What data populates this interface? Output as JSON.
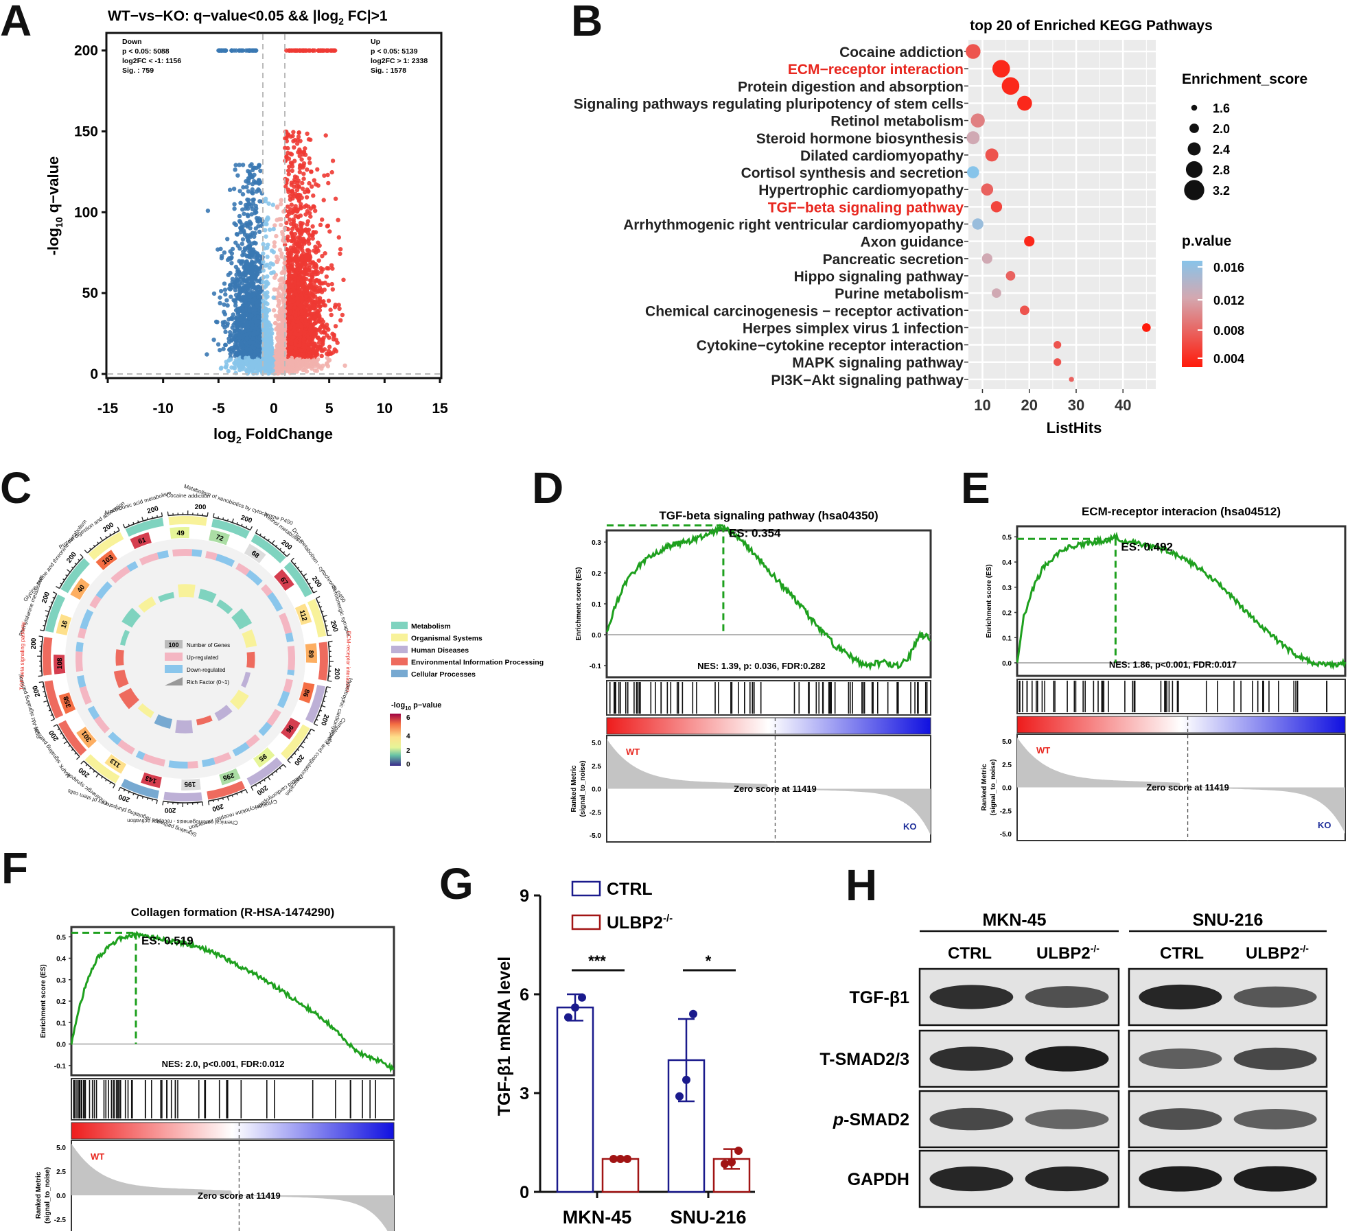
{
  "panels": {
    "A": {
      "label": "A",
      "title": "WT−vs−KO: q−value<0.05 && |log",
      "title_sub": "2",
      "title_end": " FC|>1",
      "xlabel": "log",
      "xlabel_sub": "2",
      "xlabel_end": " FoldChange",
      "ylabel": "-log",
      "ylabel_sub": "10",
      "ylabel_end": " q−value",
      "xticks": [
        "-15",
        "-10",
        "-5",
        "0",
        "5",
        "10",
        "15"
      ],
      "yticks": [
        "0",
        "50",
        "100",
        "150",
        "200"
      ],
      "down": {
        "l1": "Down",
        "l2": "p < 0.05: 5088",
        "l3": "log2FC < -1: 1156",
        "l4": "Sig. : 759"
      },
      "up": {
        "l1": "Up",
        "l2": "p < 0.05: 5139",
        "l3": "log2FC > 1: 2338",
        "l4": "Sig. : 1578"
      },
      "colors": {
        "down": "#3a78b3",
        "up": "#ee3a33",
        "ns_down": "#87c4ea",
        "ns_up": "#f2b1ad",
        "ns": "#cfcfcf"
      }
    },
    "B": {
      "label": "B",
      "title": "top 20 of Enriched KEGG Pathways",
      "xlabel": "ListHits",
      "xticks": [
        "10",
        "20",
        "30",
        "40"
      ],
      "legend_size_title": "Enrichment_score",
      "legend_size_items": [
        "1.6",
        "2.0",
        "2.4",
        "2.8",
        "3.2"
      ],
      "legend_color_title": "p.value",
      "legend_color_items": [
        "0.016",
        "0.012",
        "0.008",
        "0.004"
      ]
    },
    "C": {
      "label": "C",
      "legend_items": [
        "Metabolism",
        "Organismal Systems",
        "Human Diseases",
        "Environmental Information Processing",
        "Cellular Processes"
      ],
      "legend_colors": [
        "#7fd3bf",
        "#f8f29a",
        "#bdb0d6",
        "#ee6b5e",
        "#77a9d1"
      ],
      "inner_legend": [
        "Number of Genes",
        "Up-regulated",
        "Down-regulated",
        "Rich Factor (0~1)"
      ],
      "inner_legend_value": "100",
      "pvalue_title": "-log",
      "pvalue_sub": "10",
      "pvalue_end": " p−value",
      "pvalue_ticks": [
        "6",
        "4",
        "2",
        "0"
      ],
      "sectors": [
        {
          "name": "Phenylalanine metabolism",
          "genes": "16",
          "color": "#7fd3bf",
          "up": 2,
          "down": 4
        },
        {
          "name": "Glycine, serine and threonine metabolism",
          "genes": "40",
          "color": "#7fd3bf",
          "up": 6,
          "down": 9
        },
        {
          "name": "Protein digestion and absorption",
          "genes": "103",
          "color": "#f8f29a",
          "up": 25,
          "down": 12
        },
        {
          "name": "Arachidonic acid metabolism",
          "genes": "61",
          "color": "#7fd3bf",
          "up": 14,
          "down": 8
        },
        {
          "name": "Cocaine addiction",
          "genes": "49",
          "color": "#f8f29a",
          "up": 12,
          "down": 6
        },
        {
          "name": "Metabolism of xenobiotics by cytochrome P450",
          "genes": "72",
          "color": "#7fd3bf",
          "up": 9,
          "down": 15
        },
        {
          "name": "Retinol metabolism",
          "genes": "68",
          "color": "#7fd3bf",
          "up": 11,
          "down": 14
        },
        {
          "name": "Drug metabolism - cytochrome P450",
          "genes": "67",
          "color": "#7fd3bf",
          "up": 8,
          "down": 15
        },
        {
          "name": "Serotonergic synapse",
          "genes": "112",
          "color": "#f8f29a",
          "up": 21,
          "down": 9
        },
        {
          "name": "ECM-receptor interaction",
          "genes": "89",
          "color": "#ee6b5e",
          "up": 23,
          "down": 5
        },
        {
          "name": "Hypertrophic cardiomyopathy",
          "genes": "86",
          "color": "#bdb0d6",
          "up": 11,
          "down": 14
        },
        {
          "name": "Complement and coagulation cascades",
          "genes": "96",
          "color": "#f8f29a",
          "up": 16,
          "down": 13
        },
        {
          "name": "Dilated cardiomyopathy",
          "genes": "95",
          "color": "#bdb0d6",
          "up": 12,
          "down": 15
        },
        {
          "name": "Cytokine-cytokine receptor interaction",
          "genes": "295",
          "color": "#ee6b5e",
          "up": 32,
          "down": 24
        },
        {
          "name": "Chemical carcinogenesis - receptor activation",
          "genes": "195",
          "color": "#bdb0d6",
          "up": 12,
          "down": 22
        },
        {
          "name": "Signaling pathways regulating pluripotency of stem cells",
          "genes": "143",
          "color": "#77a9d1",
          "up": 27,
          "down": 9
        },
        {
          "name": "Cholinergic synapse",
          "genes": "113",
          "color": "#f8f29a",
          "up": 15,
          "down": 11
        },
        {
          "name": "MAPK signaling pathway",
          "genes": "301",
          "color": "#ee6b5e",
          "up": 36,
          "down": 26
        },
        {
          "name": "PI3K-Akt signaling pathway",
          "genes": "358",
          "color": "#ee6b5e",
          "up": 29,
          "down": 19
        },
        {
          "name": "TGF-beta signaling pathway",
          "genes": "108",
          "color": "#ee6b5e",
          "up": 13,
          "down": 6
        }
      ]
    },
    "D": {
      "label": "D",
      "title": "TGF-beta signaling pathway (hsa04350)",
      "es": "ES: 0.354",
      "stats": "NES: 1.39, p: 0.036, FDR:0.282",
      "es_ticks": [
        "0.3",
        "0.2",
        "0.1",
        "0.0",
        "-0.1"
      ]
    },
    "E": {
      "label": "E",
      "title": "ECM-receptor interacion (hsa04512)",
      "es": "ES: 0.492",
      "stats": "NES: 1.86, p<0.001, FDR:0.017",
      "es_ticks": [
        "0.5",
        "0.4",
        "0.3",
        "0.2",
        "0.1",
        "0.0"
      ]
    },
    "F": {
      "label": "F",
      "title": "Collagen formation (R-HSA-1474290)",
      "es": "ES: 0.519",
      "stats": "NES: 2.0, p<0.001, FDR:0.012",
      "es_ticks": [
        "0.5",
        "0.4",
        "0.3",
        "0.2",
        "0.1",
        "0.0",
        "-0.1"
      ]
    },
    "gsea_common": {
      "ylabel_es": "Enrichment score (ES)",
      "ylabel_rm1": "Ranked Metric",
      "ylabel_rm2": "(signal_to_noise)",
      "wt": "WT",
      "ko": "KO",
      "zero": "Zero score at 11419",
      "rm_ticks": [
        "5.0",
        "2.5",
        "0.0",
        "-2.5",
        "-5.0"
      ]
    },
    "G": {
      "label": "G",
      "ylabel": "TGF-β1 mRNA level",
      "yticks": [
        "0",
        "3",
        "6",
        "9"
      ],
      "legend1": "CTRL",
      "legend2": "ULBP2",
      "legend2_sup": "-/-",
      "sig1": "***",
      "sig2": "*"
    },
    "H": {
      "label": "H",
      "cell_lines": [
        "MKN-45",
        "SNU-216"
      ],
      "lanes": [
        "CTRL",
        "ULBP2",
        "CTRL",
        "ULBP2"
      ],
      "lane_sup": "-/-",
      "proteins": [
        "TGF-β1",
        "T-SMAD2/3",
        "SMAD2",
        "GAPDH"
      ],
      "p_prefix": "p",
      "p_dash": "-"
    }
  },
  "chart_data": [
    {
      "type": "scatter",
      "title": "WT-vs-KO: q-value<0.05 && |log2 FC|>1",
      "xlabel": "log2 FoldChange",
      "ylabel": "-log10 q-value",
      "xlim": [
        -15,
        15
      ],
      "ylim": [
        0,
        210
      ],
      "thresholds": {
        "log2fc": [
          -1,
          1
        ],
        "qvalue": 0.05
      },
      "counts": {
        "down": {
          "p<0.05": 5088,
          "log2FC<-1": 1156,
          "sig": 759
        },
        "up": {
          "p<0.05": 5139,
          "log2FC>1": 2338,
          "sig": 1578
        }
      }
    },
    {
      "type": "scatter",
      "title": "top 20 of Enriched KEGG Pathways",
      "xlabel": "ListHits",
      "xlim": [
        7,
        47
      ],
      "categories": [
        "Cocaine addiction",
        "ECM−receptor interaction",
        "Protein digestion and absorption",
        "Signaling pathways regulating pluripotency of stem cells",
        "Retinol metabolism",
        "Steroid hormone biosynthesis",
        "Dilated cardiomyopathy",
        "Cortisol synthesis and secretion",
        "Hypertrophic cardiomyopathy",
        "TGF−beta signaling pathway",
        "Arrhythmogenic right ventricular cardiomyopathy",
        "Axon guidance",
        "Pancreatic secretion",
        "Hippo signaling pathway",
        "Purine metabolism",
        "Chemical carcinogenesis − receptor activation",
        "Herpes simplex virus 1 infection",
        "Cytokine−cytokine receptor interaction",
        "MAPK signaling pathway",
        "PI3K−Akt signaling pathway"
      ],
      "highlight": [
        "ECM−receptor interaction",
        "TGF−beta signaling pathway"
      ],
      "listhits": [
        8,
        14,
        16,
        19,
        9,
        8,
        12,
        8,
        11,
        13,
        9,
        20,
        11,
        16,
        13,
        19,
        45,
        26,
        26,
        29
      ],
      "enrichment_score": [
        2.6,
        2.9,
        2.9,
        2.6,
        2.5,
        2.4,
        2.4,
        2.3,
        2.3,
        2.2,
        2.2,
        2.1,
        2.1,
        2.0,
        2.0,
        2.0,
        1.9,
        1.8,
        1.8,
        1.5
      ],
      "pvalue": [
        0.006,
        0.003,
        0.003,
        0.003,
        0.009,
        0.012,
        0.006,
        0.016,
        0.007,
        0.005,
        0.015,
        0.003,
        0.012,
        0.007,
        0.012,
        0.006,
        0.002,
        0.006,
        0.006,
        0.007
      ]
    },
    {
      "type": "line",
      "title": "TGF-beta signaling pathway (hsa04350)",
      "ylabel": "Enrichment score (ES)",
      "es": 0.354,
      "nes": 1.39,
      "p": 0.036,
      "fdr": 0.282,
      "ylim": [
        -0.12,
        0.32
      ],
      "x": [
        0,
        0.02,
        0.05,
        0.08,
        0.12,
        0.16,
        0.2,
        0.24,
        0.28,
        0.32,
        0.36,
        0.4,
        0.45,
        0.5,
        0.55,
        0.6,
        0.65,
        0.7,
        0.75,
        0.8,
        0.85,
        0.9,
        0.93,
        0.95,
        0.97,
        1
      ],
      "y": [
        0,
        0.08,
        0.15,
        0.2,
        0.24,
        0.27,
        0.29,
        0.3,
        0.31,
        0.33,
        0.35,
        0.32,
        0.27,
        0.21,
        0.15,
        0.09,
        0.03,
        -0.03,
        -0.07,
        -0.1,
        -0.09,
        -0.1,
        -0.08,
        -0.03,
        0.0,
        -0.01
      ]
    },
    {
      "type": "line",
      "title": "ECM-receptor interacion (hsa04512)",
      "ylabel": "Enrichment score (ES)",
      "es": 0.492,
      "nes": 1.86,
      "p": "<0.001",
      "fdr": 0.017,
      "ylim": [
        -0.03,
        0.52
      ],
      "x": [
        0,
        0.02,
        0.05,
        0.08,
        0.12,
        0.16,
        0.2,
        0.24,
        0.28,
        0.3,
        0.32,
        0.36,
        0.4,
        0.45,
        0.5,
        0.55,
        0.6,
        0.65,
        0.7,
        0.75,
        0.8,
        0.85,
        0.9,
        0.95,
        1
      ],
      "y": [
        0,
        0.18,
        0.3,
        0.38,
        0.43,
        0.46,
        0.47,
        0.48,
        0.49,
        0.5,
        0.48,
        0.48,
        0.46,
        0.45,
        0.42,
        0.38,
        0.33,
        0.27,
        0.2,
        0.14,
        0.08,
        0.03,
        0.0,
        -0.01,
        0.0
      ]
    },
    {
      "type": "line",
      "title": "Collagen formation (R-HSA-1474290)",
      "ylabel": "Enrichment score (ES)",
      "es": 0.519,
      "nes": 2.0,
      "p": "<0.001",
      "fdr": 0.012,
      "ylim": [
        -0.12,
        0.52
      ],
      "x": [
        0,
        0.02,
        0.05,
        0.08,
        0.12,
        0.16,
        0.2,
        0.25,
        0.3,
        0.35,
        0.4,
        0.45,
        0.5,
        0.55,
        0.6,
        0.65,
        0.7,
        0.75,
        0.8,
        0.84,
        0.88,
        0.92,
        0.96,
        1
      ],
      "y": [
        0,
        0.15,
        0.3,
        0.4,
        0.46,
        0.5,
        0.51,
        0.5,
        0.48,
        0.47,
        0.45,
        0.42,
        0.38,
        0.34,
        0.3,
        0.25,
        0.2,
        0.15,
        0.09,
        0.03,
        -0.03,
        -0.06,
        -0.08,
        -0.12
      ]
    },
    {
      "type": "bar",
      "ylabel": "TGF-β1 mRNA level",
      "categories": [
        "MKN-45",
        "SNU-216"
      ],
      "ylim": [
        0,
        9
      ],
      "series": [
        {
          "name": "CTRL",
          "values": [
            5.6,
            4.0
          ],
          "sd": [
            0.4,
            1.25
          ],
          "points": [
            [
              5.3,
              5.6,
              5.9
            ],
            [
              2.9,
              3.4,
              5.4
            ]
          ]
        },
        {
          "name": "ULBP2-/-",
          "values": [
            1.0,
            1.0
          ],
          "sd": [
            0.03,
            0.3
          ],
          "points": [
            [
              1.0,
              1.0,
              1.0
            ],
            [
              0.85,
              0.9,
              1.25
            ]
          ]
        }
      ],
      "significance": [
        "***",
        "*"
      ]
    }
  ]
}
